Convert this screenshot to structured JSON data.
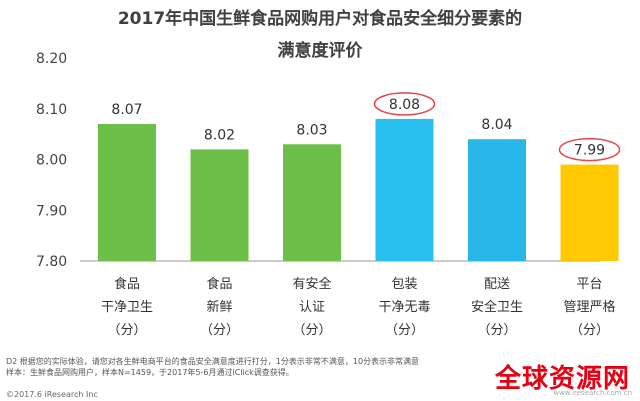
{
  "title_line1": "2017年中国生鲜食品网购用户对食品安全细分要素的",
  "title_line2": "满意度评价",
  "chart_data": {
    "type": "bar",
    "categories": [
      [
        "食品",
        "干净卫生",
        "（分）"
      ],
      [
        "食品",
        "新鲜",
        "（分）"
      ],
      [
        "有安全",
        "认证",
        "（分）"
      ],
      [
        "包装",
        "干净无毒",
        "（分）"
      ],
      [
        "配送",
        "安全卫生",
        "（分）"
      ],
      [
        "平台",
        "管理严格",
        "（分）"
      ]
    ],
    "values": [
      8.07,
      8.02,
      8.03,
      8.08,
      8.04,
      7.99
    ],
    "value_labels": [
      "8.07",
      "8.02",
      "8.03",
      "8.08",
      "8.04",
      "7.99"
    ],
    "colors": [
      "#6cc04a",
      "#6cc04a",
      "#6cc04a",
      "#29c0ef",
      "#29b7ea",
      "#ffc800"
    ],
    "highlighted": [
      false,
      false,
      false,
      true,
      false,
      true
    ],
    "highlight_color": "#e8454a",
    "ylim": [
      7.8,
      8.2
    ],
    "yticks": [
      "7.80",
      "7.90",
      "8.00",
      "8.10",
      "8.20"
    ],
    "grid": false
  },
  "notes": {
    "line1": "D2 根据您的实际体验，请您对各生鲜电商平台的食品安全满意度进行打分，1分表示非常不满意，10分表示非常满意",
    "line2": "样本：生鲜食品网购用户，样本N=1459，于2017年5-6月通过iClick调查获得。",
    "copyright": "©2017.6 iResearch Inc"
  },
  "watermark": {
    "text": "全球资源网",
    "url": "www.iresearch.com.cn"
  }
}
